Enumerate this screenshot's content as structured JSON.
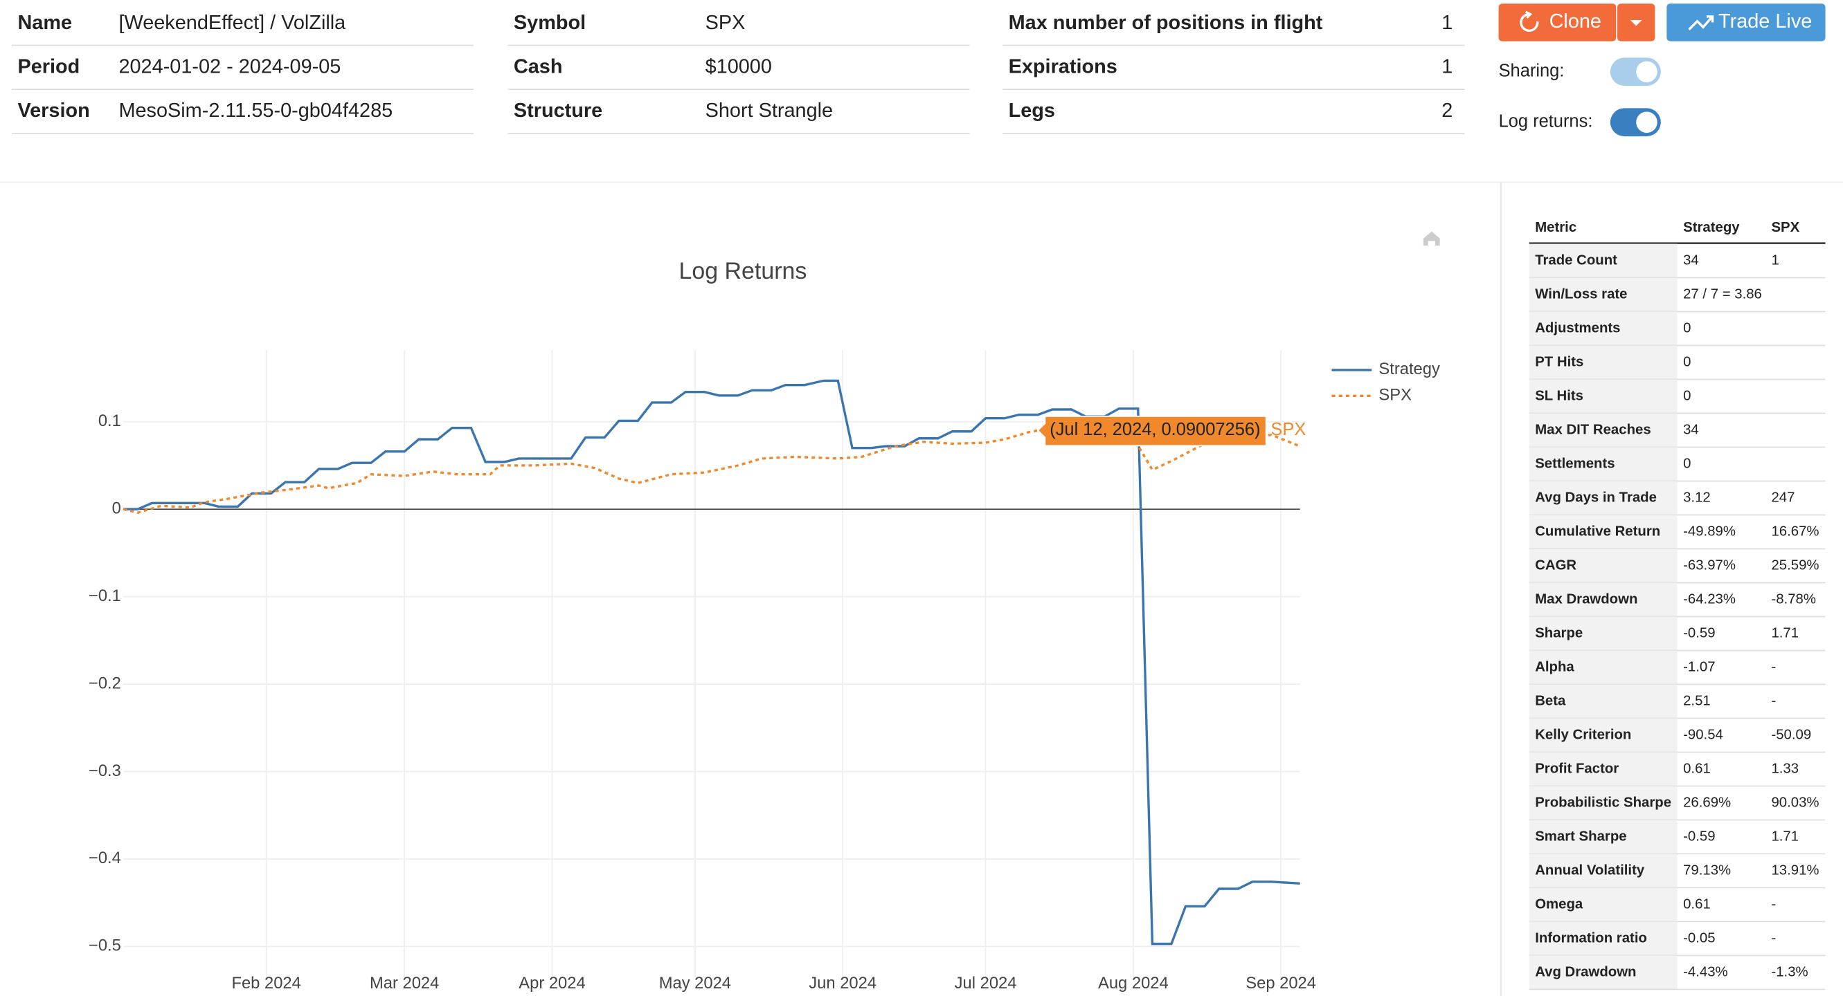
{
  "info": [
    [
      {
        "label": "Name",
        "value": "[WeekendEffect] / VolZilla"
      },
      {
        "label": "Period",
        "value": "2024-01-02 - 2024-09-05"
      },
      {
        "label": "Version",
        "value": "MesoSim-2.11.55-0-gb04f4285"
      }
    ],
    [
      {
        "label": "Symbol",
        "value": "SPX"
      },
      {
        "label": "Cash",
        "value": "$10000"
      },
      {
        "label": "Structure",
        "value": "Short Strangle"
      }
    ],
    [
      {
        "label": "Max number of positions in flight",
        "value": "1"
      },
      {
        "label": "Expirations",
        "value": "1"
      },
      {
        "label": "Legs",
        "value": "2"
      }
    ]
  ],
  "buttons": {
    "clone": "Clone",
    "trade_live": "Trade Live"
  },
  "toggles": [
    {
      "label": "Sharing:"
    },
    {
      "label": "Log returns:"
    }
  ],
  "chart_data": {
    "type": "line",
    "title": "Log Returns",
    "xlim": [
      "2024-01-02",
      "2024-09-05"
    ],
    "xticks": [
      {
        "value": "2024-02-01",
        "label": "Feb 2024"
      },
      {
        "value": "2024-03-01",
        "label": "Mar 2024"
      },
      {
        "value": "2024-04-01",
        "label": "Apr 2024"
      },
      {
        "value": "2024-05-01",
        "label": "May 2024"
      },
      {
        "value": "2024-06-01",
        "label": "Jun 2024"
      },
      {
        "value": "2024-07-01",
        "label": "Jul 2024"
      },
      {
        "value": "2024-08-01",
        "label": "Aug 2024"
      },
      {
        "value": "2024-09-01",
        "label": "Sep 2024"
      }
    ],
    "ylim": [
      -0.535,
      0.182
    ],
    "yticks": [
      {
        "value": -0.5,
        "label": "−0.5"
      },
      {
        "value": -0.4,
        "label": "−0.4"
      },
      {
        "value": -0.3,
        "label": "−0.3"
      },
      {
        "value": -0.2,
        "label": "−0.2"
      },
      {
        "value": -0.1,
        "label": "−0.1"
      },
      0,
      0.1
    ],
    "grid": true,
    "series": [
      {
        "name": "Strategy",
        "color": "#3b75af",
        "dash": "solid",
        "x": [
          "2024-01-02",
          "2024-01-05",
          "2024-01-08",
          "2024-01-19",
          "2024-01-22",
          "2024-01-26",
          "2024-01-29",
          "2024-02-02",
          "2024-02-05",
          "2024-02-09",
          "2024-02-12",
          "2024-02-16",
          "2024-02-19",
          "2024-02-23",
          "2024-02-26",
          "2024-03-01",
          "2024-03-04",
          "2024-03-08",
          "2024-03-11",
          "2024-03-15",
          "2024-03-18",
          "2024-03-22",
          "2024-03-25",
          "2024-04-05",
          "2024-04-08",
          "2024-04-12",
          "2024-04-15",
          "2024-04-19",
          "2024-04-22",
          "2024-04-26",
          "2024-04-29",
          "2024-05-03",
          "2024-05-06",
          "2024-05-10",
          "2024-05-13",
          "2024-05-17",
          "2024-05-20",
          "2024-05-24",
          "2024-05-28",
          "2024-05-31",
          "2024-06-03",
          "2024-06-07",
          "2024-06-10",
          "2024-06-14",
          "2024-06-17",
          "2024-06-21",
          "2024-06-24",
          "2024-06-28",
          "2024-07-01",
          "2024-07-05",
          "2024-07-08",
          "2024-07-12",
          "2024-07-15",
          "2024-07-19",
          "2024-07-22",
          "2024-07-26",
          "2024-07-29",
          "2024-08-02",
          "2024-08-05",
          "2024-08-09",
          "2024-08-12",
          "2024-08-16",
          "2024-08-19",
          "2024-08-23",
          "2024-08-26",
          "2024-08-30",
          "2024-09-05"
        ],
        "values": [
          0,
          0,
          0.007,
          0.007,
          0.003,
          0.003,
          0.018,
          0.018,
          0.031,
          0.031,
          0.046,
          0.046,
          0.053,
          0.053,
          0.066,
          0.066,
          0.08,
          0.08,
          0.093,
          0.093,
          0.054,
          0.054,
          0.058,
          0.058,
          0.082,
          0.082,
          0.101,
          0.101,
          0.122,
          0.122,
          0.134,
          0.134,
          0.13,
          0.13,
          0.136,
          0.136,
          0.142,
          0.142,
          0.147,
          0.147,
          0.07,
          0.07,
          0.072,
          0.072,
          0.081,
          0.081,
          0.089,
          0.089,
          0.104,
          0.104,
          0.108,
          0.108,
          0.114,
          0.114,
          0.106,
          0.106,
          0.115,
          0.115,
          -0.497,
          -0.497,
          -0.454,
          -0.454,
          -0.434,
          -0.434,
          -0.426,
          -0.426,
          -0.428
        ]
      },
      {
        "name": "SPX",
        "color": "#f0892b",
        "dash": "dot",
        "x": [
          "2024-01-02",
          "2024-01-05",
          "2024-01-10",
          "2024-01-16",
          "2024-01-19",
          "2024-01-24",
          "2024-01-31",
          "2024-02-05",
          "2024-02-12",
          "2024-02-14",
          "2024-02-20",
          "2024-02-23",
          "2024-03-01",
          "2024-03-07",
          "2024-03-12",
          "2024-03-19",
          "2024-03-21",
          "2024-03-28",
          "2024-04-05",
          "2024-04-10",
          "2024-04-15",
          "2024-04-19",
          "2024-04-26",
          "2024-05-03",
          "2024-05-10",
          "2024-05-15",
          "2024-05-22",
          "2024-05-31",
          "2024-06-05",
          "2024-06-12",
          "2024-06-18",
          "2024-06-24",
          "2024-07-01",
          "2024-07-05",
          "2024-07-10",
          "2024-07-12",
          "2024-07-16",
          "2024-07-24",
          "2024-08-01",
          "2024-08-05",
          "2024-08-09",
          "2024-08-16",
          "2024-08-23",
          "2024-08-30",
          "2024-09-05"
        ],
        "values": [
          0,
          -0.004,
          0.004,
          0.002,
          0.008,
          0.012,
          0.019,
          0.022,
          0.027,
          0.024,
          0.03,
          0.04,
          0.038,
          0.043,
          0.04,
          0.04,
          0.05,
          0.05,
          0.052,
          0.047,
          0.035,
          0.03,
          0.04,
          0.042,
          0.05,
          0.058,
          0.06,
          0.058,
          0.06,
          0.072,
          0.077,
          0.075,
          0.076,
          0.08,
          0.088,
          0.09007256,
          0.092,
          0.082,
          0.082,
          0.045,
          0.055,
          0.075,
          0.082,
          0.085,
          0.072
        ]
      }
    ],
    "hover": {
      "text": "(Jul 12, 2024, 0.09007256)"
    }
  },
  "metrics": {
    "columns": [
      "Metric",
      "Strategy",
      "SPX"
    ],
    "rows": [
      [
        "Trade Count",
        "34",
        "1"
      ],
      [
        "Win/Loss rate",
        "27 / 7 = 3.86",
        null
      ],
      [
        "Adjustments",
        "0",
        null
      ],
      [
        "PT Hits",
        "0",
        null
      ],
      [
        "SL Hits",
        "0",
        null
      ],
      [
        "Max DIT Reaches",
        "34",
        null
      ],
      [
        "Settlements",
        "0",
        null
      ],
      [
        "Avg Days in Trade",
        "3.12",
        "247"
      ],
      [
        "Cumulative Return",
        "-49.89%",
        "16.67%"
      ],
      [
        "CAGR",
        "-63.97%",
        "25.59%"
      ],
      [
        "Max Drawdown",
        "-64.23%",
        "-8.78%"
      ],
      [
        "Sharpe",
        "-0.59",
        "1.71"
      ],
      [
        "Alpha",
        "-1.07",
        "-"
      ],
      [
        "Beta",
        "2.51",
        "-"
      ],
      [
        "Kelly Criterion",
        "-90.54",
        "-50.09"
      ],
      [
        "Profit Factor",
        "0.61",
        "1.33"
      ],
      [
        "Probabilistic Sharpe",
        "26.69%",
        "90.03%"
      ],
      [
        "Smart Sharpe",
        "-0.59",
        "1.71"
      ],
      [
        "Annual Volatility",
        "79.13%",
        "13.91%"
      ],
      [
        "Omega",
        "0.61",
        "-"
      ],
      [
        "Information ratio",
        "-0.05",
        "-"
      ],
      [
        "Avg Drawdown",
        "-4.43%",
        "-1.3%"
      ]
    ]
  }
}
